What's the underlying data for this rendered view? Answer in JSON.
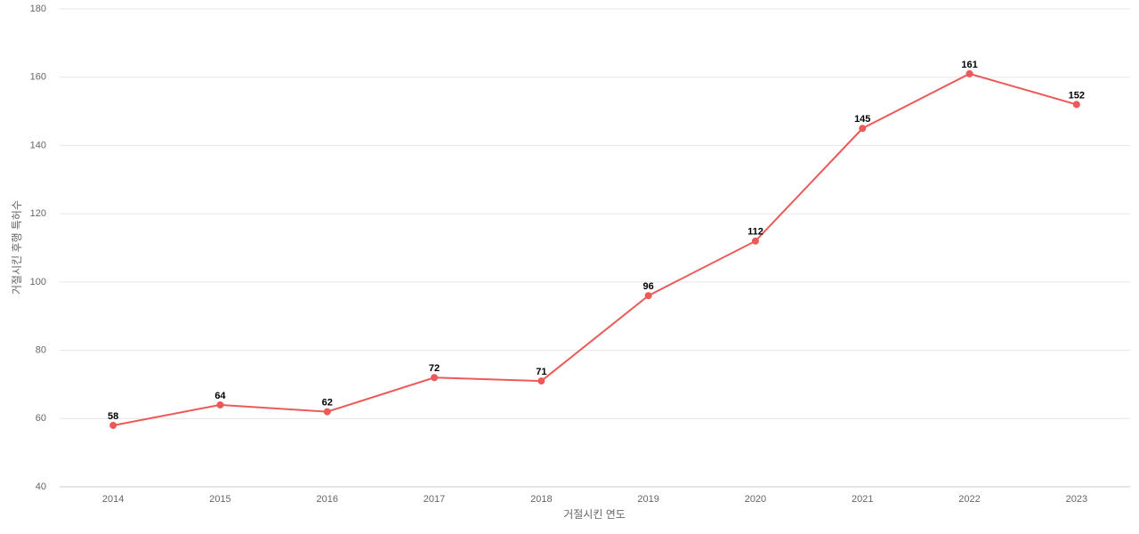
{
  "chart_data": {
    "type": "line",
    "x_label": "거절시킨 연도",
    "y_label": "거절시킨 후행 특허수",
    "categories": [
      "2014",
      "2015",
      "2016",
      "2017",
      "2018",
      "2019",
      "2020",
      "2021",
      "2022",
      "2023"
    ],
    "values": [
      58,
      64,
      62,
      72,
      71,
      96,
      112,
      145,
      161,
      152
    ],
    "color": "#eb5a58",
    "ylim": [
      40,
      180
    ],
    "yticks": [
      40,
      60,
      80,
      100,
      120,
      140,
      160,
      180
    ],
    "grid": true
  }
}
